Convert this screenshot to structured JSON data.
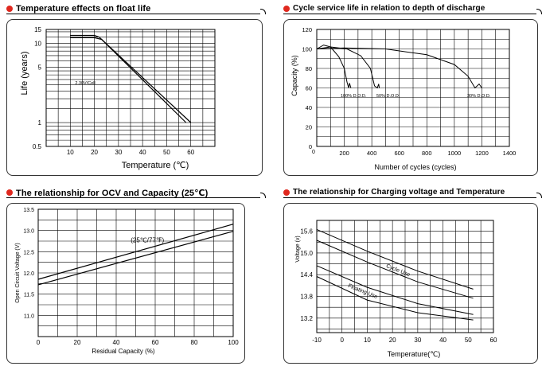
{
  "chart_data": [
    {
      "type": "line",
      "title": "Temperature effects on float life",
      "xlabel": "Temperature (℃)",
      "ylabel": "Life (years)",
      "xscale": "linear",
      "yscale": "log",
      "xlim": [
        0,
        70
      ],
      "ylim": [
        0.5,
        15
      ],
      "x_ticks": [
        10,
        20,
        30,
        40,
        50,
        60
      ],
      "y_ticks": [
        0.5,
        1,
        5,
        10,
        15
      ],
      "y_tick_labels": [
        "0.5",
        "1",
        "5",
        "10",
        "15"
      ],
      "annotations": [
        "2.30V/Cell"
      ],
      "series": [
        {
          "name": "upper",
          "points": [
            [
              10,
              12.6
            ],
            [
              20,
              12.6
            ],
            [
              22,
              12.0
            ],
            [
              60,
              1.0
            ]
          ]
        },
        {
          "name": "lower",
          "points": [
            [
              10,
              11.8
            ],
            [
              20,
              11.8
            ],
            [
              23,
              11.2
            ],
            [
              58,
              1.0
            ]
          ]
        }
      ]
    },
    {
      "type": "line",
      "title": "Cycle service life in relation to depth of discharge",
      "xlabel": "Number of cycles (cycles)",
      "ylabel": "Capacity (%)",
      "xlim": [
        0,
        1400
      ],
      "ylim": [
        0,
        120
      ],
      "x_ticks": [
        200,
        400,
        600,
        800,
        1000,
        1200,
        1400
      ],
      "y_ticks": [
        0,
        20,
        40,
        60,
        80,
        100,
        120
      ],
      "series": [
        {
          "name": "100% D.O.D.",
          "label": "100% D.O.D.",
          "points": [
            [
              0,
              100
            ],
            [
              50,
              104
            ],
            [
              100,
              102
            ],
            [
              160,
              92
            ],
            [
              200,
              80
            ],
            [
              220,
              66
            ],
            [
              232,
              60
            ],
            [
              238,
              65
            ],
            [
              248,
              60
            ]
          ]
        },
        {
          "name": "50% D.O.D.",
          "label": "50% D.O.D.",
          "points": [
            [
              0,
              100
            ],
            [
              100,
              102
            ],
            [
              220,
              100
            ],
            [
              320,
              93
            ],
            [
              390,
              80
            ],
            [
              420,
              62
            ],
            [
              440,
              60
            ],
            [
              450,
              64
            ],
            [
              455,
              60
            ]
          ]
        },
        {
          "name": "30% D.O.D.",
          "label": "30% D.O.D.",
          "points": [
            [
              0,
              100
            ],
            [
              200,
              101
            ],
            [
              500,
              100
            ],
            [
              800,
              94
            ],
            [
              1000,
              84
            ],
            [
              1100,
              72
            ],
            [
              1150,
              60
            ],
            [
              1180,
              64
            ],
            [
              1200,
              60
            ]
          ]
        }
      ]
    },
    {
      "type": "line",
      "title": "The relationship  for OCV and Capacity (25℃)",
      "xlabel": "Residual Capacity (%)",
      "ylabel": "Open Circuit Voltage (V)",
      "xlim": [
        0,
        100
      ],
      "ylim": [
        10.5,
        13.5
      ],
      "x_ticks": [
        0,
        20,
        40,
        60,
        80,
        100
      ],
      "y_ticks": [
        11.0,
        11.5,
        12.0,
        12.5,
        13.0,
        13.5
      ],
      "y_tick_labels": [
        "11.0",
        "11.5",
        "12.0",
        "12.5",
        "13.0",
        "13.5"
      ],
      "annotations": [
        "(25℃/77℉)"
      ],
      "series": [
        {
          "name": "upper",
          "points": [
            [
              0,
              11.85
            ],
            [
              100,
              13.15
            ]
          ]
        },
        {
          "name": "lower",
          "points": [
            [
              0,
              11.72
            ],
            [
              100,
              12.98
            ]
          ]
        }
      ]
    },
    {
      "type": "line",
      "title": "The relationship for Charging voltage and Temperature",
      "xlabel": "Temperature(℃)",
      "ylabel": "Voltage (v)",
      "xlim": [
        -10,
        60
      ],
      "ylim": [
        12.8,
        15.9
      ],
      "x_ticks": [
        -10,
        0,
        10,
        20,
        30,
        40,
        50,
        60
      ],
      "y_ticks": [
        13.2,
        13.8,
        14.4,
        15.0,
        15.6
      ],
      "y_tick_labels": [
        "13.2",
        "13.8",
        "14.4",
        "15.0",
        "15.6"
      ],
      "series": [
        {
          "name": "Cycle Use upper",
          "label": "Cycle Use",
          "points": [
            [
              -10,
              15.65
            ],
            [
              10,
              15.05
            ],
            [
              30,
              14.5
            ],
            [
              52,
              14.0
            ]
          ]
        },
        {
          "name": "Cycle Use lower",
          "points": [
            [
              -10,
              15.35
            ],
            [
              10,
              14.75
            ],
            [
              30,
              14.2
            ],
            [
              52,
              13.75
            ]
          ]
        },
        {
          "name": "Floating Use upper",
          "label": "Floating Use",
          "points": [
            [
              -10,
              14.65
            ],
            [
              10,
              14.05
            ],
            [
              30,
              13.6
            ],
            [
              52,
              13.3
            ]
          ]
        },
        {
          "name": "Floating Use lower",
          "points": [
            [
              -10,
              14.35
            ],
            [
              10,
              13.7
            ],
            [
              30,
              13.35
            ],
            [
              52,
              13.15
            ]
          ]
        }
      ]
    }
  ]
}
